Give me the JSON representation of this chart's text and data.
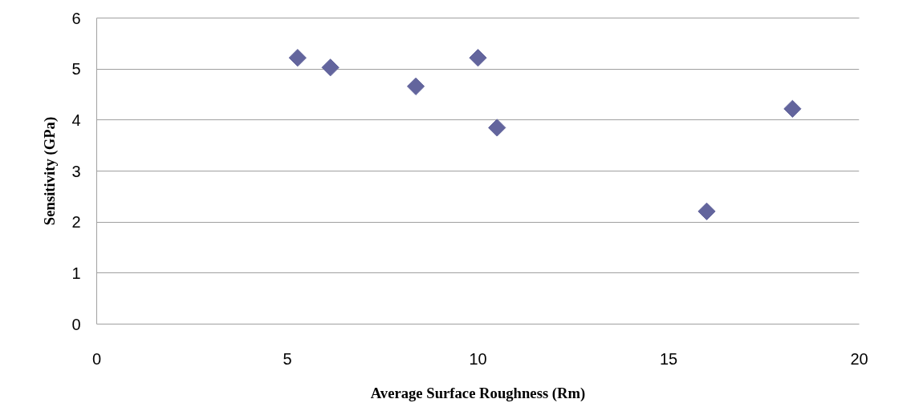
{
  "chart_data": {
    "type": "scatter",
    "xlabel": "Average Surface Roughness (Rm)",
    "ylabel": "Sensitivity (GPa)",
    "x": [
      5.27,
      6.13,
      8.37,
      10.0,
      10.5,
      16.0,
      18.25
    ],
    "series": [
      {
        "color": "#63659d",
        "values": [
          5.22,
          5.03,
          4.66,
          5.22,
          3.85,
          2.21,
          4.22
        ]
      }
    ],
    "xlim": [
      0,
      20
    ],
    "xticks": [
      0,
      5,
      10,
      15,
      20
    ],
    "ylim": [
      0,
      6
    ],
    "yticks": [
      0,
      1,
      2,
      3,
      4,
      5,
      6
    ],
    "grid": "y",
    "marker": "diamond"
  }
}
